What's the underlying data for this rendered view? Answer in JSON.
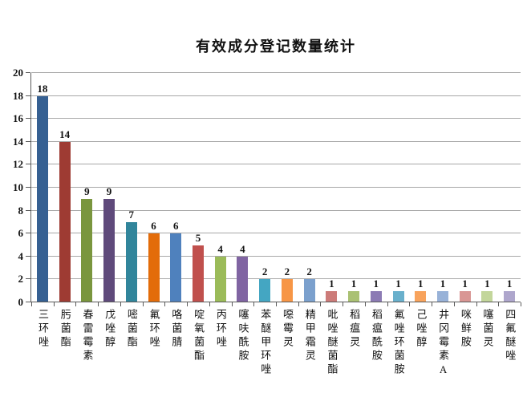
{
  "chart_data": {
    "type": "bar",
    "title": "有效成分登记数量统计",
    "categories": [
      "三环唑",
      "肟菌酯",
      "春雷霉素",
      "戊唑醇",
      "嘧菌酯",
      "氟环唑",
      "咯菌腈",
      "啶氧菌酯",
      "丙环唑",
      "噻呋酰胺",
      "苯醚甲环唑",
      "噁霉灵",
      "精甲霜灵",
      "吡唑醚菌酯",
      "稻瘟灵",
      "稻瘟酰胺",
      "氟唑环菌胺",
      "己唑醇",
      "井冈霉素A",
      "咪鲜胺",
      "噻菌灵",
      "四氟醚唑"
    ],
    "values": [
      18,
      14,
      9,
      9,
      7,
      6,
      6,
      5,
      4,
      4,
      2,
      2,
      2,
      1,
      1,
      1,
      1,
      1,
      1,
      1,
      1,
      1
    ],
    "data_labels": [
      18,
      14,
      9,
      9,
      7,
      6,
      6,
      5,
      4,
      4,
      2,
      2,
      2,
      1,
      1,
      1,
      1,
      1,
      1,
      1,
      1,
      1
    ],
    "bar_colors": [
      "#366092",
      "#9E3B33",
      "#7A963E",
      "#5F4A7B",
      "#31859B",
      "#E36C0A",
      "#4F81BD",
      "#C0504D",
      "#9BBB59",
      "#8064A2",
      "#44A6C2",
      "#F79646",
      "#7BA0CD",
      "#CC7B79",
      "#AAC173",
      "#8C7BB4",
      "#69B0CC",
      "#F8A35C",
      "#98B2D8",
      "#D99694",
      "#C3D69B",
      "#AEA6CC"
    ],
    "xlabel": "",
    "ylabel": "",
    "ylim": [
      0,
      20
    ],
    "ytick_step": 2,
    "yticks": [
      0,
      2,
      4,
      6,
      8,
      10,
      12,
      14,
      16,
      18,
      20
    ],
    "grid": "horizontal",
    "legend_position": "none"
  },
  "colors": {
    "background": "#FFFFFF",
    "gridline": "#A8A8A8",
    "axis": "#5A5A5A",
    "text": "#111111"
  }
}
